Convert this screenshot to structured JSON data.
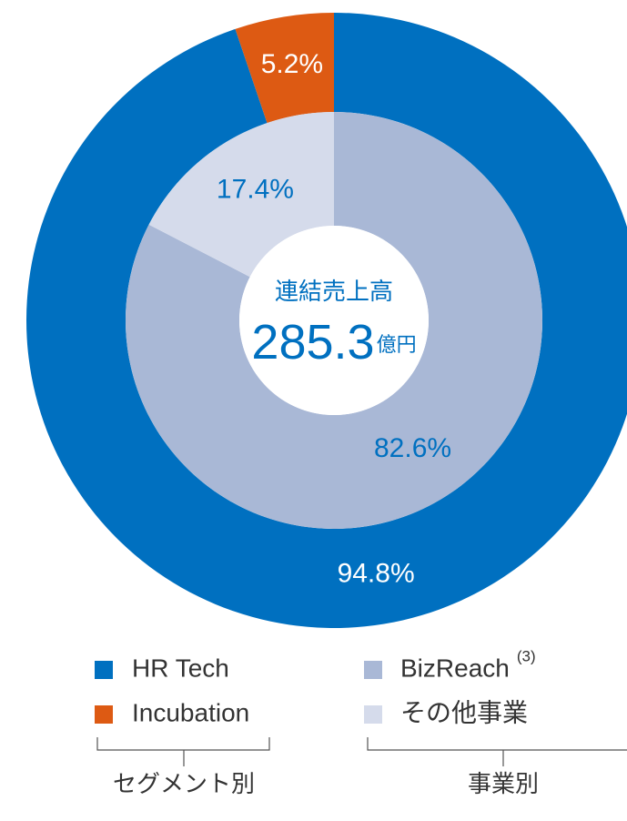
{
  "chart_data": [
    {
      "type": "donut",
      "group_label": "セグメント別",
      "categories": [
        "HR Tech",
        "Incubation"
      ],
      "values": [
        94.8,
        5.2
      ],
      "value_labels": [
        "94.8%",
        "5.2%"
      ],
      "colors": [
        "#0070c0",
        "#dd5a13"
      ],
      "label_color": "#ffffff"
    },
    {
      "type": "donut",
      "group_label": "事業別",
      "categories": [
        "BizReach",
        "その他事業"
      ],
      "notes": [
        "(3)",
        null
      ],
      "values": [
        82.6,
        17.4
      ],
      "value_labels": [
        "82.6%",
        "17.4%"
      ],
      "colors": [
        "#a9b8d6",
        "#d5dbeb"
      ],
      "label_color": "#0070c0"
    }
  ],
  "center": {
    "label": "連結売上高",
    "value": 285.3,
    "unit": "億円"
  }
}
